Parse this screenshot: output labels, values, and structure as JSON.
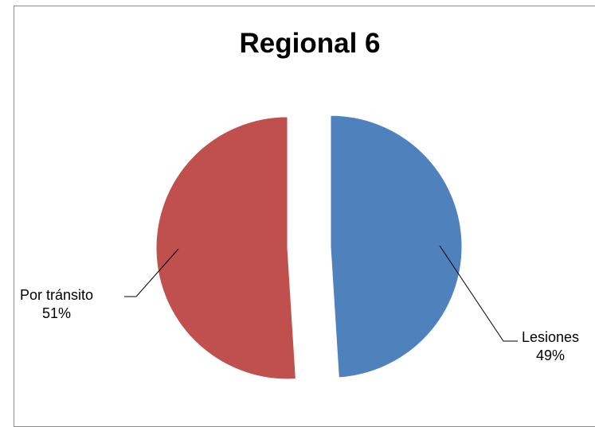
{
  "chart_data": {
    "type": "pie",
    "title": "Regional 6",
    "slices": [
      {
        "label": "Lesiones",
        "value": 49,
        "display": "49%",
        "color": "#4f81bd",
        "exploded": true
      },
      {
        "label": "Por tránsito",
        "value": 51,
        "display": "51%",
        "color": "#c0504d",
        "exploded": true
      }
    ],
    "legend": "none",
    "labels": "outside with leader lines"
  }
}
